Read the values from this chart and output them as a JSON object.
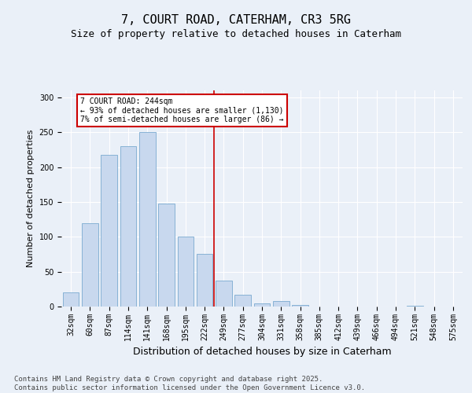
{
  "title": "7, COURT ROAD, CATERHAM, CR3 5RG",
  "subtitle": "Size of property relative to detached houses in Caterham",
  "xlabel": "Distribution of detached houses by size in Caterham",
  "ylabel": "Number of detached properties",
  "categories": [
    "32sqm",
    "60sqm",
    "87sqm",
    "114sqm",
    "141sqm",
    "168sqm",
    "195sqm",
    "222sqm",
    "249sqm",
    "277sqm",
    "304sqm",
    "331sqm",
    "358sqm",
    "385sqm",
    "412sqm",
    "439sqm",
    "466sqm",
    "494sqm",
    "521sqm",
    "548sqm",
    "575sqm"
  ],
  "values": [
    20,
    120,
    218,
    230,
    250,
    148,
    100,
    75,
    37,
    17,
    5,
    8,
    2,
    0,
    0,
    0,
    0,
    0,
    1,
    0,
    0
  ],
  "bar_color": "#c8d8ee",
  "bar_edge_color": "#7aaard0",
  "vline_color": "#cc0000",
  "vline_pos": 7.5,
  "annotation_text": "7 COURT ROAD: 244sqm\n← 93% of detached houses are smaller (1,130)\n7% of semi-detached houses are larger (86) →",
  "annotation_box_edgecolor": "#cc0000",
  "ylim": [
    0,
    310
  ],
  "yticks": [
    0,
    50,
    100,
    150,
    200,
    250,
    300
  ],
  "background_color": "#eaf0f8",
  "grid_color": "#ffffff",
  "title_fontsize": 11,
  "subtitle_fontsize": 9,
  "ylabel_fontsize": 8,
  "xlabel_fontsize": 9,
  "tick_fontsize": 7,
  "footer": "Contains HM Land Registry data © Crown copyright and database right 2025.\nContains public sector information licensed under the Open Government Licence v3.0.",
  "footer_fontsize": 6.5
}
